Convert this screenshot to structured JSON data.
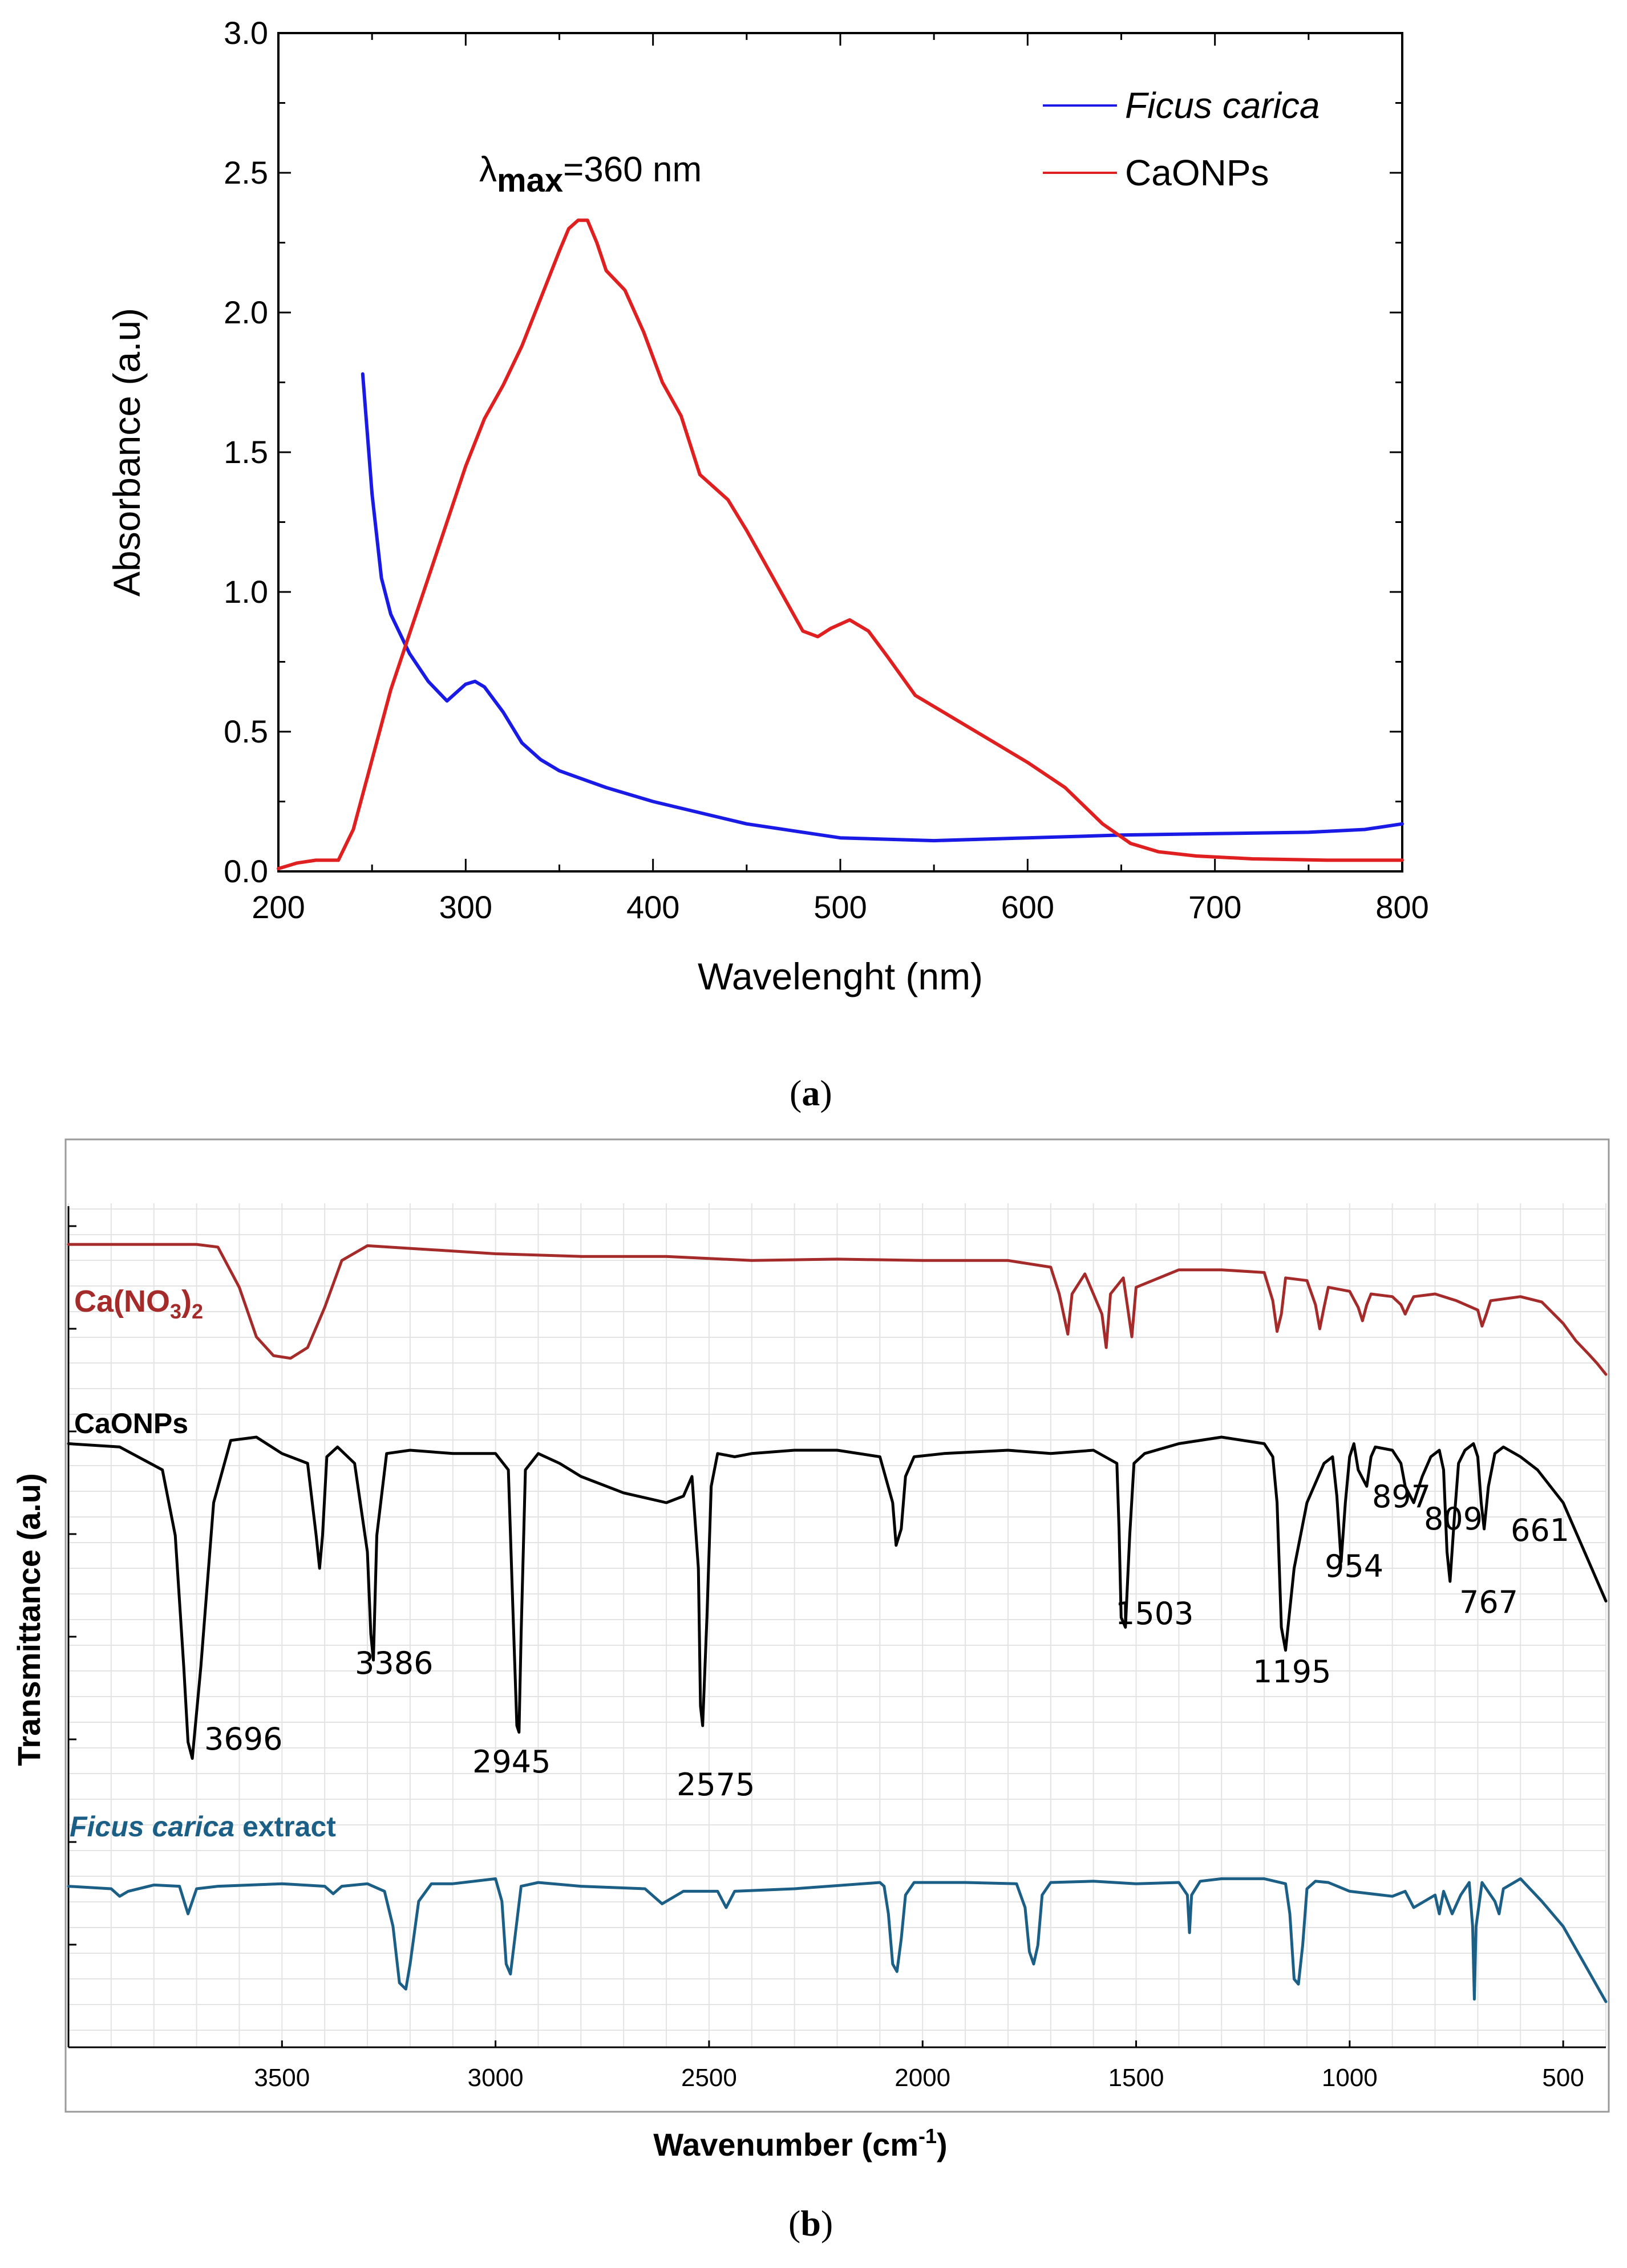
{
  "colors": {
    "ficus_uv": "#1a1ae6",
    "caonps_uv": "#e02020",
    "ca_no3": "#a52a2a",
    "caonps_ftir": "#000000",
    "ficus_ftir": "#1b5e86",
    "grid": "#e3e3e3"
  },
  "chart_data": [
    {
      "id": "a",
      "type": "line",
      "caption": "a",
      "xlabel": "Wavelenght (nm)",
      "ylabel": "Absorbance (a.u)",
      "xlim": [
        200,
        800
      ],
      "ylim": [
        0.0,
        3.0
      ],
      "xticks": [
        "200",
        "300",
        "400",
        "500",
        "600",
        "700",
        "800"
      ],
      "yticks": [
        "0.0",
        "0.5",
        "1.0",
        "1.5",
        "2.0",
        "2.5",
        "3.0"
      ],
      "annotation": {
        "lambda": "λ",
        "sub": "max",
        "text": "=360 nm"
      },
      "legend": {
        "position": "top-right"
      },
      "series": [
        {
          "name": "Ficus carica",
          "italic": true,
          "color_key": "ficus_uv",
          "x": [
            245,
            250,
            255,
            260,
            270,
            280,
            290,
            295,
            300,
            305,
            310,
            320,
            330,
            340,
            350,
            375,
            400,
            450,
            500,
            550,
            600,
            650,
            700,
            750,
            780,
            800
          ],
          "y": [
            1.78,
            1.35,
            1.05,
            0.92,
            0.78,
            0.68,
            0.61,
            0.64,
            0.67,
            0.68,
            0.66,
            0.57,
            0.46,
            0.4,
            0.36,
            0.3,
            0.25,
            0.17,
            0.12,
            0.11,
            0.12,
            0.13,
            0.135,
            0.14,
            0.15,
            0.17
          ]
        },
        {
          "name": "CaONPs",
          "italic": false,
          "color_key": "caonps_uv",
          "x": [
            200,
            210,
            220,
            232,
            240,
            250,
            260,
            270,
            280,
            290,
            300,
            310,
            320,
            330,
            340,
            350,
            355,
            360,
            365,
            370,
            375,
            385,
            395,
            405,
            415,
            425,
            430,
            440,
            450,
            460,
            470,
            480,
            488,
            495,
            505,
            515,
            525,
            540,
            560,
            580,
            600,
            620,
            640,
            655,
            670,
            690,
            720,
            760,
            800
          ],
          "y": [
            0.01,
            0.03,
            0.04,
            0.04,
            0.15,
            0.4,
            0.65,
            0.85,
            1.05,
            1.25,
            1.45,
            1.62,
            1.74,
            1.88,
            2.05,
            2.22,
            2.3,
            2.33,
            2.33,
            2.25,
            2.15,
            2.08,
            1.93,
            1.75,
            1.63,
            1.42,
            1.39,
            1.33,
            1.22,
            1.1,
            0.98,
            0.86,
            0.84,
            0.87,
            0.9,
            0.86,
            0.77,
            0.63,
            0.55,
            0.47,
            0.39,
            0.3,
            0.17,
            0.1,
            0.07,
            0.055,
            0.045,
            0.04,
            0.04
          ]
        }
      ]
    },
    {
      "id": "b",
      "type": "line",
      "caption": "b",
      "xlabel": "Wavenumber (cm",
      "xlabel_sup": "-1",
      "xlabel_end": ")",
      "ylabel": "Transmittance (a.u)",
      "xlim": [
        4000,
        400
      ],
      "xticks": [
        "3500",
        "3000",
        "2500",
        "2000",
        "1500",
        "1000",
        "500"
      ],
      "grid": true,
      "series": [
        {
          "name": "Ca(NO3)2",
          "label_main": "Ca(NO",
          "label_sub": "3",
          "label_end": ")",
          "label_sub2": "2",
          "color_key": "ca_no3",
          "x": [
            4000,
            3700,
            3650,
            3600,
            3560,
            3520,
            3480,
            3440,
            3400,
            3360,
            3300,
            3200,
            3000,
            2800,
            2600,
            2400,
            2200,
            2000,
            1800,
            1700,
            1680,
            1660,
            1650,
            1620,
            1580,
            1570,
            1560,
            1530,
            1520,
            1510,
            1500,
            1400,
            1300,
            1200,
            1180,
            1170,
            1160,
            1150,
            1100,
            1080,
            1070,
            1060,
            1050,
            1000,
            980,
            970,
            960,
            950,
            900,
            880,
            870,
            860,
            850,
            800,
            750,
            700,
            690,
            680,
            670,
            600,
            550,
            500,
            470,
            440,
            420,
            400
          ],
          "y": [
            0.03,
            0.03,
            0.05,
            0.35,
            0.72,
            0.86,
            0.88,
            0.8,
            0.5,
            0.15,
            0.04,
            0.06,
            0.1,
            0.12,
            0.12,
            0.15,
            0.14,
            0.15,
            0.15,
            0.2,
            0.4,
            0.7,
            0.4,
            0.25,
            0.55,
            0.8,
            0.4,
            0.28,
            0.5,
            0.72,
            0.35,
            0.22,
            0.22,
            0.24,
            0.45,
            0.68,
            0.55,
            0.28,
            0.3,
            0.48,
            0.66,
            0.5,
            0.35,
            0.38,
            0.5,
            0.6,
            0.48,
            0.4,
            0.42,
            0.48,
            0.55,
            0.48,
            0.42,
            0.4,
            0.45,
            0.52,
            0.64,
            0.55,
            0.45,
            0.42,
            0.46,
            0.62,
            0.75,
            0.85,
            0.92,
            1.0
          ]
        },
        {
          "name": "CaONPs",
          "color_key": "caonps_ftir",
          "x": [
            4000,
            3880,
            3780,
            3750,
            3730,
            3720,
            3710,
            3690,
            3660,
            3620,
            3560,
            3500,
            3440,
            3420,
            3412,
            3405,
            3395,
            3370,
            3330,
            3300,
            3292,
            3286,
            3278,
            3255,
            3200,
            3100,
            3000,
            2970,
            2960,
            2950,
            2945,
            2940,
            2930,
            2900,
            2850,
            2800,
            2700,
            2600,
            2560,
            2540,
            2525,
            2520,
            2515,
            2505,
            2495,
            2480,
            2440,
            2400,
            2300,
            2200,
            2100,
            2070,
            2062,
            2050,
            2040,
            2020,
            1950,
            1800,
            1700,
            1600,
            1545,
            1540,
            1535,
            1525,
            1515,
            1505,
            1480,
            1400,
            1300,
            1200,
            1180,
            1170,
            1160,
            1150,
            1130,
            1100,
            1060,
            1040,
            1030,
            1020,
            1010,
            1000,
            990,
            980,
            960,
            950,
            940,
            900,
            880,
            870,
            850,
            830,
            810,
            790,
            780,
            772,
            765,
            755,
            745,
            730,
            710,
            700,
            692,
            685,
            675,
            660,
            640,
            600,
            560,
            500,
            450,
            400
          ],
          "y": [
            0.02,
            0.03,
            0.1,
            0.3,
            0.7,
            0.93,
            0.98,
            0.7,
            0.2,
            0.01,
            0.0,
            0.05,
            0.08,
            0.3,
            0.4,
            0.3,
            0.06,
            0.03,
            0.08,
            0.35,
            0.6,
            0.68,
            0.3,
            0.05,
            0.04,
            0.05,
            0.05,
            0.1,
            0.5,
            0.88,
            0.9,
            0.6,
            0.1,
            0.05,
            0.08,
            0.12,
            0.17,
            0.2,
            0.18,
            0.12,
            0.4,
            0.82,
            0.88,
            0.55,
            0.15,
            0.05,
            0.06,
            0.05,
            0.04,
            0.04,
            0.06,
            0.2,
            0.33,
            0.28,
            0.12,
            0.06,
            0.05,
            0.04,
            0.05,
            0.04,
            0.08,
            0.28,
            0.55,
            0.58,
            0.3,
            0.08,
            0.05,
            0.02,
            0.0,
            0.02,
            0.06,
            0.2,
            0.58,
            0.65,
            0.4,
            0.2,
            0.08,
            0.06,
            0.18,
            0.38,
            0.2,
            0.06,
            0.02,
            0.1,
            0.15,
            0.06,
            0.03,
            0.04,
            0.08,
            0.15,
            0.2,
            0.12,
            0.06,
            0.04,
            0.1,
            0.35,
            0.44,
            0.25,
            0.08,
            0.04,
            0.02,
            0.06,
            0.2,
            0.28,
            0.15,
            0.05,
            0.03,
            0.06,
            0.1,
            0.2,
            0.35,
            0.5
          ]
        },
        {
          "name": "Ficus carica extract",
          "label_italic": "Ficus carica",
          "label_rest": " extract",
          "color_key": "ficus_ftir",
          "x": [
            4000,
            3900,
            3880,
            3860,
            3800,
            3740,
            3720,
            3700,
            3650,
            3500,
            3400,
            3380,
            3360,
            3300,
            3260,
            3240,
            3225,
            3210,
            3200,
            3180,
            3150,
            3100,
            3000,
            2985,
            2975,
            2965,
            2955,
            2940,
            2900,
            2800,
            2650,
            2610,
            2560,
            2480,
            2460,
            2440,
            2300,
            2100,
            2090,
            2080,
            2070,
            2060,
            2050,
            2040,
            2020,
            1900,
            1780,
            1760,
            1750,
            1740,
            1730,
            1720,
            1700,
            1600,
            1500,
            1400,
            1380,
            1375,
            1370,
            1350,
            1300,
            1200,
            1150,
            1140,
            1130,
            1120,
            1110,
            1100,
            1080,
            1050,
            1000,
            900,
            870,
            850,
            800,
            790,
            780,
            760,
            740,
            720,
            712,
            708,
            704,
            690,
            660,
            650,
            640,
            600,
            550,
            500,
            450,
            400
          ],
          "y": [
            0.08,
            0.1,
            0.16,
            0.12,
            0.07,
            0.08,
            0.3,
            0.1,
            0.08,
            0.06,
            0.08,
            0.14,
            0.08,
            0.06,
            0.12,
            0.4,
            0.85,
            0.9,
            0.7,
            0.2,
            0.06,
            0.06,
            0.02,
            0.2,
            0.7,
            0.78,
            0.5,
            0.08,
            0.05,
            0.08,
            0.1,
            0.22,
            0.12,
            0.12,
            0.25,
            0.12,
            0.1,
            0.05,
            0.08,
            0.3,
            0.7,
            0.76,
            0.5,
            0.15,
            0.05,
            0.05,
            0.06,
            0.25,
            0.6,
            0.7,
            0.55,
            0.15,
            0.05,
            0.04,
            0.06,
            0.05,
            0.15,
            0.45,
            0.15,
            0.04,
            0.02,
            0.02,
            0.06,
            0.3,
            0.82,
            0.86,
            0.55,
            0.1,
            0.04,
            0.05,
            0.12,
            0.16,
            0.12,
            0.25,
            0.15,
            0.3,
            0.12,
            0.3,
            0.15,
            0.05,
            0.4,
            0.98,
            0.4,
            0.05,
            0.2,
            0.3,
            0.1,
            0.02,
            0.2,
            0.4,
            0.7,
            1.0
          ]
        }
      ],
      "peak_labels": [
        "3696",
        "3386",
        "2945",
        "2575",
        "1503",
        "1195",
        "954",
        "897",
        "809",
        "767",
        "661"
      ]
    }
  ]
}
